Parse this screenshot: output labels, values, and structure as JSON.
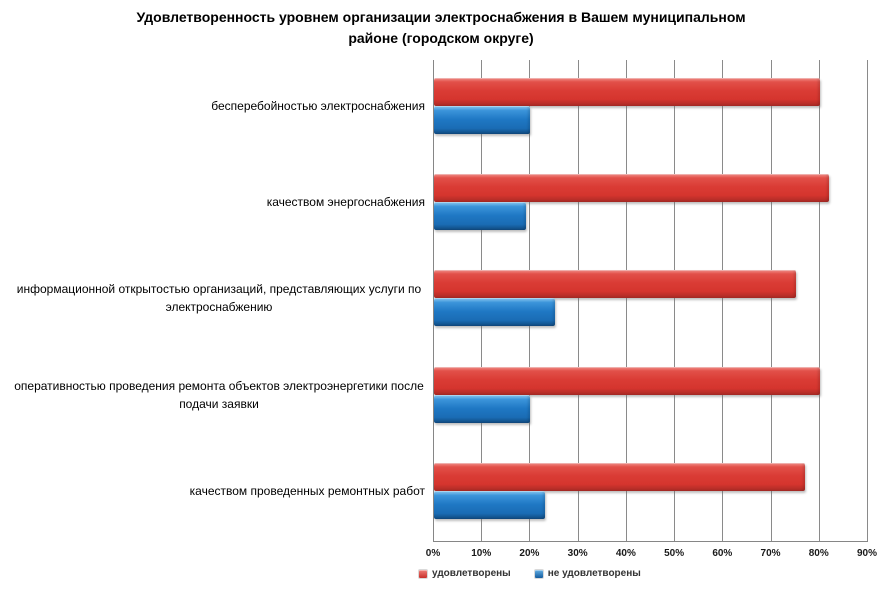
{
  "chart_data": {
    "type": "bar",
    "orientation": "horizontal",
    "title": "Удовлетворенность уровнем организации электроснабжения в Вашем муниципальном районе (городском округе)",
    "title_lines": [
      "Удовлетворенность уровнем организации электроснабжения в Вашем муниципальном",
      "районе (городском округе)"
    ],
    "categories": [
      "бесперебойностью электроснабжения",
      "качеством энергоснабжения",
      "информационной открытостью организаций, представляющих услуги по электроснабжению",
      "оперативностью проведения ремонта объектов электроэнергетики после подачи заявки",
      "качеством проведенных ремонтных работ"
    ],
    "series": [
      {
        "name": "удовлетворены",
        "color": "#d5352e",
        "values": [
          80,
          82,
          75,
          80,
          77
        ]
      },
      {
        "name": "не удовлетворены",
        "color": "#1a6cb4",
        "values": [
          20,
          19,
          25,
          20,
          23
        ]
      }
    ],
    "value_unit": "%",
    "xlim": [
      0,
      90
    ],
    "x_tick_labels": [
      "0%",
      "10%",
      "20%",
      "30%",
      "40%",
      "50%",
      "60%",
      "70%",
      "80%",
      "90%"
    ],
    "grid": "vertical",
    "legend_position": "bottom",
    "plot_background": "#ffffff",
    "gridline_color": "#8a8a8a"
  }
}
